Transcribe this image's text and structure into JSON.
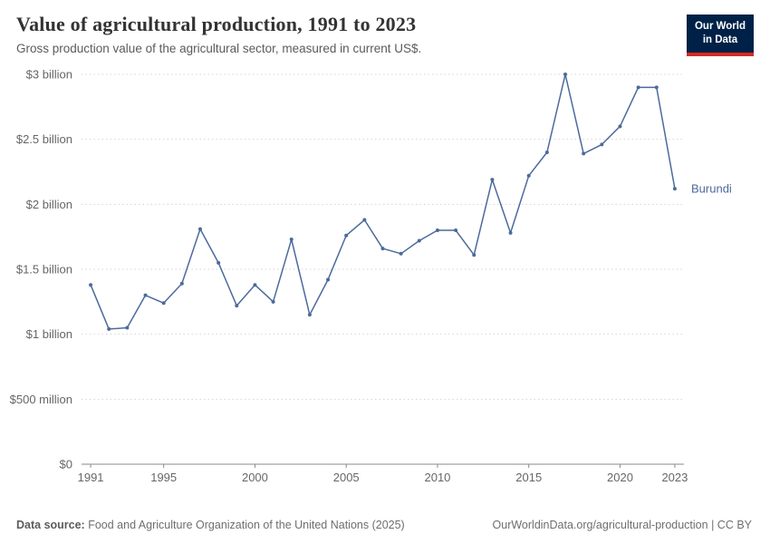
{
  "header": {
    "title": "Value of agricultural production, 1991 to 2023",
    "subtitle": "Gross production value of the agricultural sector, measured in current US$.",
    "logo": {
      "line1": "Our World",
      "line2": "in Data"
    }
  },
  "colors": {
    "series_line": "#4c6a9c",
    "grid": "#d5d5d5",
    "axis": "#8a8a8a",
    "tick_text": "#666666",
    "logo_navy": "#002147",
    "logo_red": "#d42b21"
  },
  "chart_data": {
    "type": "line",
    "title": "Value of agricultural production, 1991 to 2023",
    "subtitle": "Gross production value of the agricultural sector, measured in current US$.",
    "unit": "current US$, billions",
    "xlim": [
      1990.5,
      2023.5
    ],
    "ylim": [
      0,
      3
    ],
    "grid": "dotted-horizontal",
    "legend_position": "end-of-line-label",
    "years": [
      1991,
      1992,
      1993,
      1994,
      1995,
      1996,
      1997,
      1998,
      1999,
      2000,
      2001,
      2002,
      2003,
      2004,
      2005,
      2006,
      2007,
      2008,
      2009,
      2010,
      2011,
      2012,
      2013,
      2014,
      2015,
      2016,
      2017,
      2018,
      2019,
      2020,
      2021,
      2022,
      2023
    ],
    "series": [
      {
        "name": "Burundi",
        "color": "#4c6a9c",
        "values_billion_usd": [
          1.38,
          1.04,
          1.05,
          1.3,
          1.24,
          1.39,
          1.81,
          1.55,
          1.22,
          1.38,
          1.25,
          1.73,
          1.15,
          1.42,
          1.76,
          1.88,
          1.66,
          1.62,
          1.72,
          1.8,
          1.8,
          1.61,
          2.19,
          1.78,
          2.22,
          2.4,
          3.0,
          2.39,
          2.46,
          2.6,
          2.9,
          2.9,
          2.12
        ]
      }
    ],
    "x_ticks": [
      1991,
      1995,
      2000,
      2005,
      2010,
      2015,
      2020,
      2023
    ],
    "y_ticks": [
      {
        "v": 0,
        "label": "$0"
      },
      {
        "v": 0.5,
        "label": "$500 million"
      },
      {
        "v": 1,
        "label": "$1 billion"
      },
      {
        "v": 1.5,
        "label": "$1.5 billion"
      },
      {
        "v": 2,
        "label": "$2 billion"
      },
      {
        "v": 2.5,
        "label": "$2.5 billion"
      },
      {
        "v": 3,
        "label": "$3 billion"
      }
    ]
  },
  "footer": {
    "source_label": "Data source:",
    "source_text": " Food and Agriculture Organization of the United Nations (2025)",
    "url": "OurWorldinData.org/agricultural-production",
    "license": " | CC BY"
  }
}
